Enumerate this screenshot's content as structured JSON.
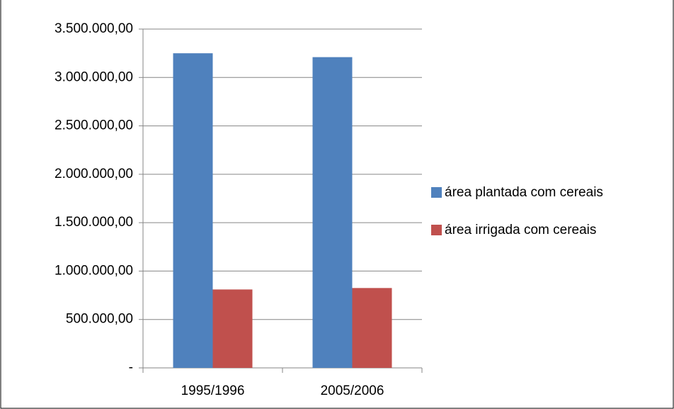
{
  "chart_data": {
    "type": "bar",
    "categories": [
      "1995/1996",
      "2005/2006"
    ],
    "series": [
      {
        "name": "área plantada  com cereais",
        "color": "#4f81bd",
        "values": [
          3250000,
          3210000
        ]
      },
      {
        "name": "área irrigada com cereais",
        "color": "#c0504d",
        "values": [
          810000,
          825000
        ]
      }
    ],
    "ylim": [
      0,
      3500000
    ],
    "yticks": [
      {
        "value": 0,
        "label": "-"
      },
      {
        "value": 500000,
        "label": "500.000,00"
      },
      {
        "value": 1000000,
        "label": "1.000.000,00"
      },
      {
        "value": 1500000,
        "label": "1.500.000,00"
      },
      {
        "value": 2000000,
        "label": "2.000.000,00"
      },
      {
        "value": 2500000,
        "label": "2.500.000,00"
      },
      {
        "value": 3000000,
        "label": "3.000.000,00"
      },
      {
        "value": 3500000,
        "label": "3.500.000,00"
      }
    ],
    "grid": true,
    "legend": "right"
  }
}
